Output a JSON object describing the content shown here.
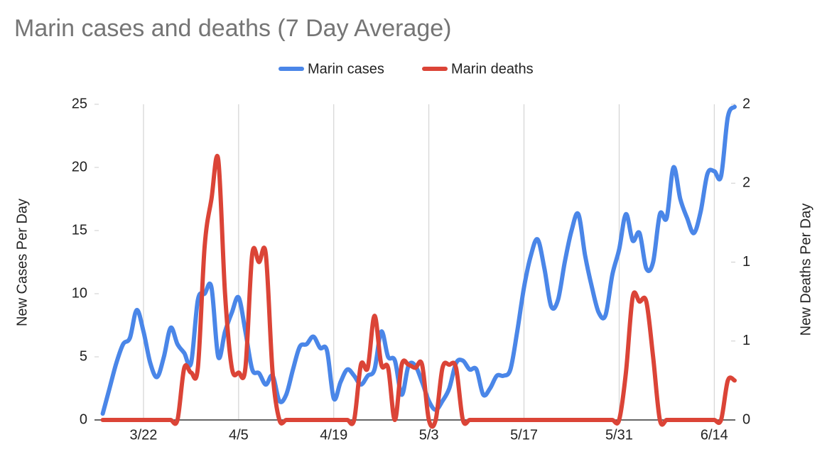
{
  "chart_data": {
    "type": "line",
    "title": "Marin cases and deaths (7 Day Average)",
    "ylabel": "New Cases Per Day",
    "y2label": "New Deaths Per Day",
    "categories": [
      null,
      null,
      null,
      null,
      null,
      null,
      "3/22",
      null,
      null,
      null,
      null,
      null,
      null,
      null,
      null,
      null,
      null,
      null,
      null,
      null,
      "4/5",
      null,
      null,
      null,
      null,
      null,
      null,
      null,
      null,
      null,
      null,
      null,
      null,
      null,
      "4/19",
      null,
      null,
      null,
      null,
      null,
      null,
      null,
      null,
      null,
      null,
      null,
      null,
      null,
      "5/3",
      null,
      null,
      null,
      null,
      null,
      null,
      null,
      null,
      null,
      null,
      null,
      null,
      null,
      "5/17",
      null,
      null,
      null,
      null,
      null,
      null,
      null,
      null,
      null,
      null,
      null,
      null,
      null,
      "5/31",
      null,
      null,
      null,
      null,
      null,
      null,
      null,
      null,
      null,
      null,
      null,
      null,
      null,
      "6/14",
      null,
      null,
      null
    ],
    "series": [
      {
        "name": "Marin cases",
        "color": "#4a86e8",
        "axis": "y",
        "values": [
          0.5,
          2.5,
          4.5,
          6,
          6.5,
          8.7,
          7,
          4.5,
          3.4,
          5,
          7.3,
          6,
          5.3,
          4.5,
          9.5,
          10,
          10.5,
          5,
          7,
          8.5,
          9.7,
          7,
          4,
          3.7,
          2.8,
          3.5,
          1.5,
          2,
          4,
          5.8,
          6,
          6.6,
          5.7,
          5.5,
          1.7,
          3,
          4,
          3.5,
          2.8,
          3.5,
          4,
          7,
          5,
          4.7,
          2,
          4.3,
          4.3,
          3,
          1.5,
          0.8,
          1.5,
          2.5,
          4.5,
          4.7,
          4,
          4,
          2,
          2.5,
          3.5,
          3.5,
          4,
          7,
          10.5,
          13,
          14.3,
          12,
          9,
          9.5,
          12.5,
          15,
          16.3,
          13,
          10.5,
          8.5,
          8.3,
          11.5,
          13.5,
          16.3,
          14.2,
          14.8,
          12,
          12.5,
          16.3,
          16,
          20,
          17.5,
          16,
          14.8,
          16.5,
          19.5,
          19.7,
          19.3,
          24,
          24.8
        ]
      },
      {
        "name": "Marin deaths",
        "color": "#db4437",
        "axis": "y2",
        "values": [
          0,
          0,
          0,
          0,
          0,
          0,
          0,
          0,
          0,
          0,
          0,
          0,
          0.33,
          0.3,
          0.33,
          1.1,
          1.4,
          1.65,
          0.8,
          0.33,
          0.3,
          0.33,
          1.05,
          1.0,
          1.05,
          0.3,
          0,
          0,
          0,
          0,
          0,
          0,
          0,
          0,
          0,
          0,
          0,
          0,
          0.35,
          0.33,
          0.66,
          0.35,
          0.33,
          0,
          0.35,
          0.35,
          0.33,
          0.35,
          0,
          0,
          0.33,
          0.35,
          0.33,
          0,
          0,
          0,
          0,
          0,
          0,
          0,
          0,
          0,
          0,
          0,
          0,
          0,
          0,
          0,
          0,
          0,
          0,
          0,
          0,
          0,
          0,
          0,
          0,
          0.3,
          0.78,
          0.75,
          0.75,
          0.4,
          0,
          0,
          0,
          0,
          0,
          0,
          0,
          0,
          0,
          0,
          0.25,
          0.25
        ]
      }
    ],
    "ylim": [
      0,
      25
    ],
    "yticks": [
      0,
      5,
      10,
      15,
      20,
      25
    ],
    "y2lim": [
      0,
      2
    ],
    "y2ticks": [
      0,
      {
        "value": 0.5,
        "label": "1"
      },
      {
        "value": 1,
        "label": "1"
      },
      {
        "value": 1.5,
        "label": "2"
      },
      2
    ],
    "xgrid": true,
    "legend": "top"
  }
}
